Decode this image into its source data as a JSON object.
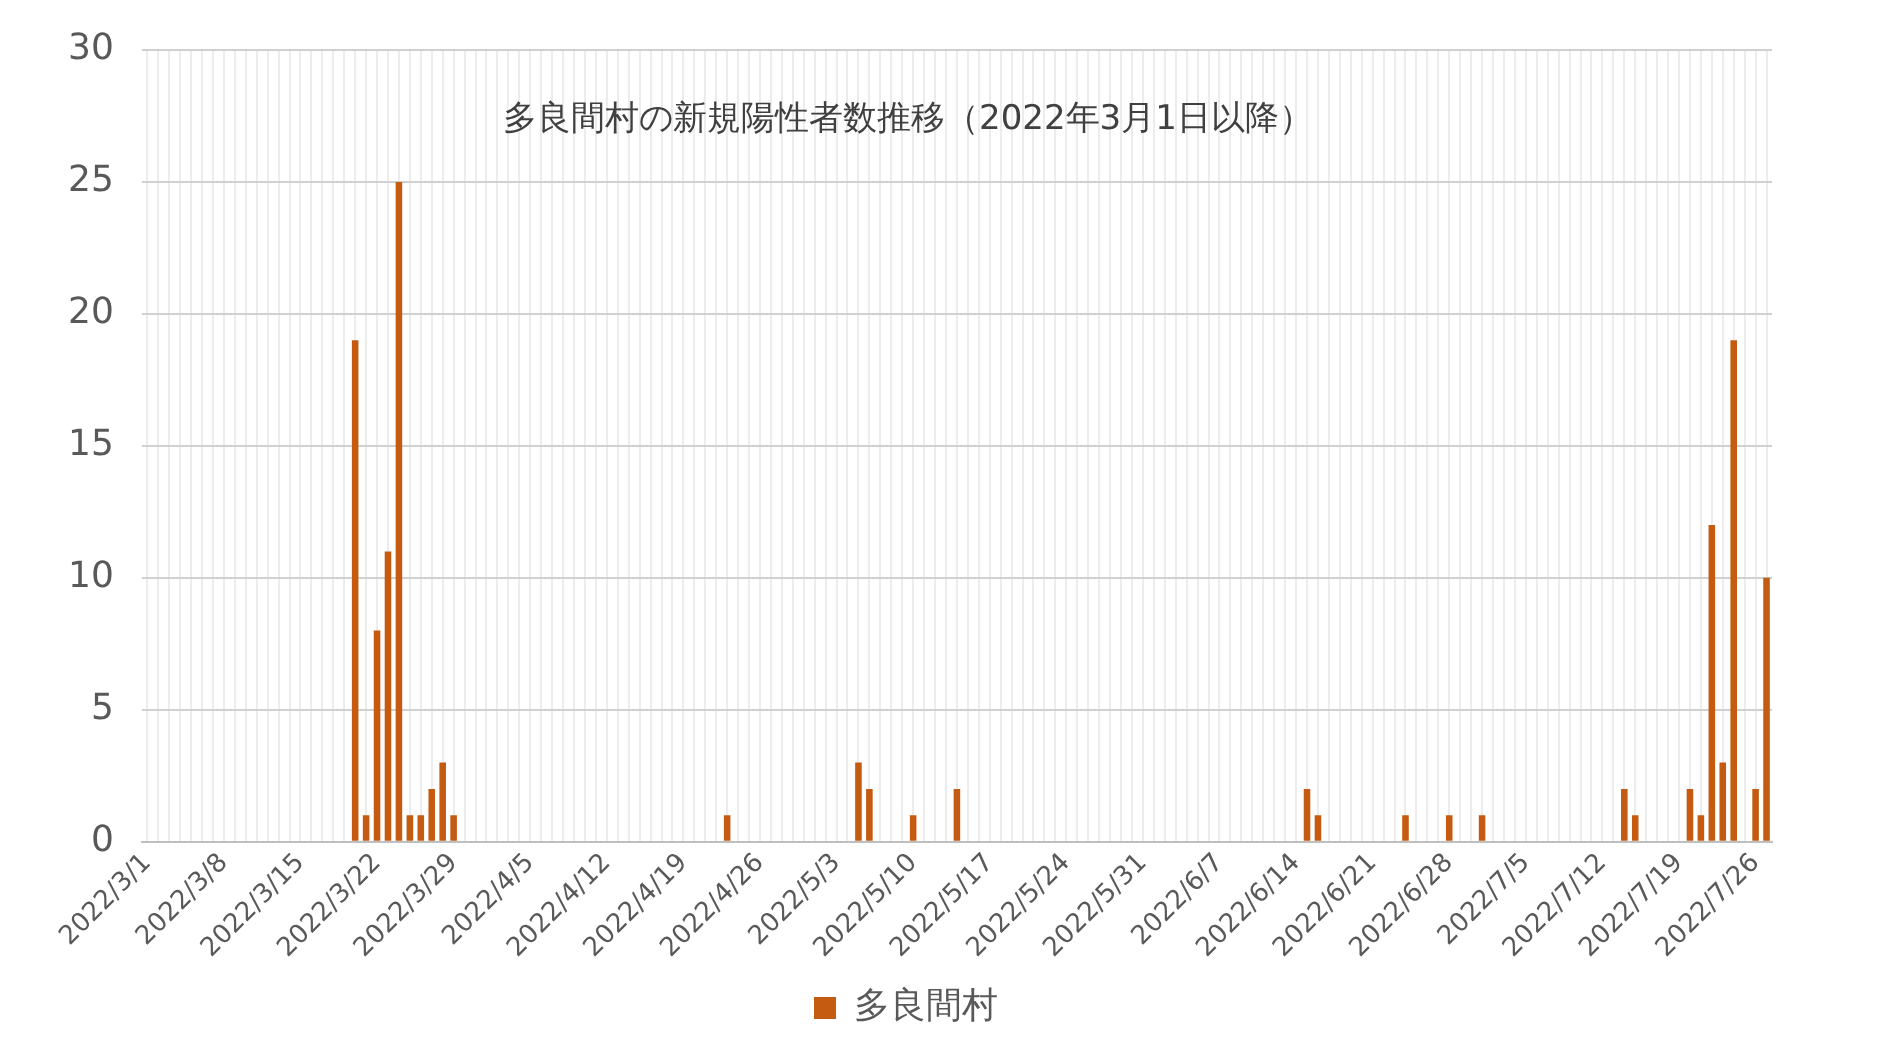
{
  "chart_data": {
    "type": "bar",
    "title": "多良間村の新規陽性者数推移（2022年3月1日以降）",
    "categories": [
      "2022/3/1",
      null,
      null,
      null,
      null,
      null,
      null,
      "2022/3/8",
      null,
      null,
      null,
      null,
      null,
      null,
      "2022/3/15",
      null,
      null,
      null,
      null,
      null,
      null,
      "2022/3/22",
      null,
      null,
      null,
      null,
      null,
      null,
      "2022/3/29",
      null,
      null,
      null,
      null,
      null,
      null,
      "2022/4/5",
      null,
      null,
      null,
      null,
      null,
      null,
      "2022/4/12",
      null,
      null,
      null,
      null,
      null,
      null,
      "2022/4/19",
      null,
      null,
      null,
      null,
      null,
      null,
      "2022/4/26",
      null,
      null,
      null,
      null,
      null,
      null,
      "2022/5/3",
      null,
      null,
      null,
      null,
      null,
      null,
      "2022/5/10",
      null,
      null,
      null,
      null,
      null,
      null,
      "2022/5/17",
      null,
      null,
      null,
      null,
      null,
      null,
      "2022/5/24",
      null,
      null,
      null,
      null,
      null,
      null,
      "2022/5/31",
      null,
      null,
      null,
      null,
      null,
      null,
      "2022/6/7",
      null,
      null,
      null,
      null,
      null,
      null,
      "2022/6/14",
      null,
      null,
      null,
      null,
      null,
      null,
      "2022/6/21",
      null,
      null,
      null,
      null,
      null,
      null,
      "2022/6/28",
      null,
      null,
      null,
      null,
      null,
      null,
      "2022/7/5",
      null,
      null,
      null,
      null,
      null,
      null,
      "2022/7/12",
      null,
      null,
      null,
      null,
      null,
      null,
      "2022/7/19",
      null,
      null,
      null,
      null,
      null,
      null,
      "2022/7/26",
      null
    ],
    "series": [
      {
        "name": "多良間村",
        "color": "#c55a11",
        "values": [
          0,
          0,
          0,
          0,
          0,
          0,
          0,
          0,
          0,
          0,
          0,
          0,
          0,
          0,
          0,
          0,
          0,
          0,
          0,
          19,
          1,
          8,
          11,
          25,
          1,
          1,
          2,
          3,
          1,
          0,
          0,
          0,
          0,
          0,
          0,
          0,
          0,
          0,
          0,
          0,
          0,
          0,
          0,
          0,
          0,
          0,
          0,
          0,
          0,
          0,
          0,
          0,
          0,
          1,
          0,
          0,
          0,
          0,
          0,
          0,
          0,
          0,
          0,
          0,
          0,
          3,
          2,
          0,
          0,
          0,
          1,
          0,
          0,
          0,
          2,
          0,
          0,
          0,
          0,
          0,
          0,
          0,
          0,
          0,
          0,
          0,
          0,
          0,
          0,
          0,
          0,
          0,
          0,
          0,
          0,
          0,
          0,
          0,
          0,
          0,
          0,
          0,
          0,
          0,
          0,
          0,
          2,
          1,
          0,
          0,
          0,
          0,
          0,
          0,
          0,
          1,
          0,
          0,
          0,
          1,
          0,
          0,
          1,
          0,
          0,
          0,
          0,
          0,
          0,
          0,
          0,
          0,
          0,
          0,
          0,
          2,
          1,
          0,
          0,
          0,
          0,
          2,
          1,
          12,
          3,
          19,
          0,
          2,
          10
        ]
      }
    ],
    "ylim": [
      0,
      30
    ],
    "yticks": [
      0,
      5,
      10,
      15,
      20,
      25,
      30
    ],
    "grid": true,
    "legend": "bottom"
  }
}
